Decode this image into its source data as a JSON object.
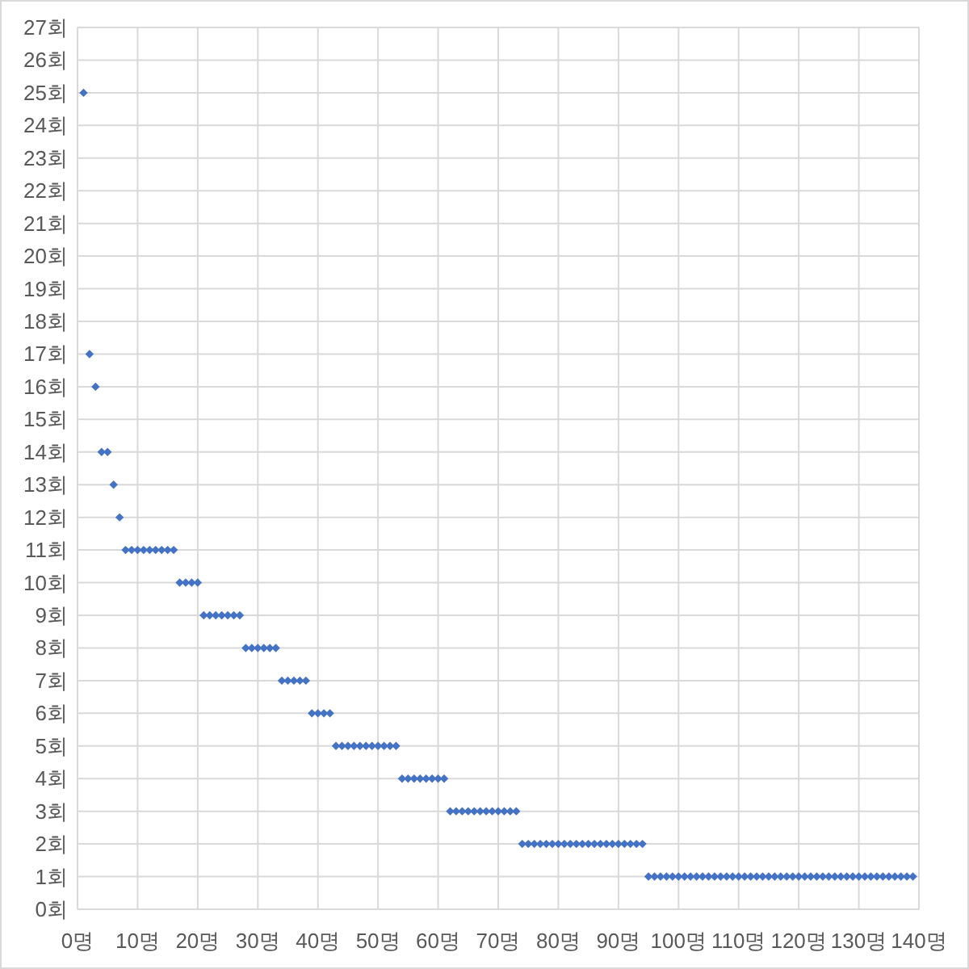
{
  "chart_data": {
    "type": "scatter",
    "x": [
      1,
      2,
      3,
      4,
      5,
      6,
      7,
      8,
      9,
      10,
      11,
      12,
      13,
      14,
      15,
      16,
      17,
      18,
      19,
      20,
      21,
      22,
      23,
      24,
      25,
      26,
      27,
      28,
      29,
      30,
      31,
      32,
      33,
      34,
      35,
      36,
      37,
      38,
      39,
      40,
      41,
      42,
      43,
      44,
      45,
      46,
      47,
      48,
      49,
      50,
      51,
      52,
      53,
      54,
      55,
      56,
      57,
      58,
      59,
      60,
      61,
      62,
      63,
      64,
      65,
      66,
      67,
      68,
      69,
      70,
      71,
      72,
      73,
      74,
      75,
      76,
      77,
      78,
      79,
      80,
      81,
      82,
      83,
      84,
      85,
      86,
      87,
      88,
      89,
      90,
      91,
      92,
      93,
      94,
      95,
      96,
      97,
      98,
      99,
      100,
      101,
      102,
      103,
      104,
      105,
      106,
      107,
      108,
      109,
      110,
      111,
      112,
      113,
      114,
      115,
      116,
      117,
      118,
      119,
      120,
      121,
      122,
      123,
      124,
      125,
      126,
      127,
      128,
      129,
      130,
      131,
      132,
      133,
      134,
      135,
      136,
      137,
      138,
      139
    ],
    "series": [
      {
        "color": "#4472c4",
        "values": [
          25,
          17,
          16,
          14,
          14,
          13,
          12,
          11,
          11,
          11,
          11,
          11,
          11,
          11,
          11,
          11,
          10,
          10,
          10,
          10,
          9,
          9,
          9,
          9,
          9,
          9,
          9,
          8,
          8,
          8,
          8,
          8,
          8,
          7,
          7,
          7,
          7,
          7,
          6,
          6,
          6,
          6,
          5,
          5,
          5,
          5,
          5,
          5,
          5,
          5,
          5,
          5,
          5,
          4,
          4,
          4,
          4,
          4,
          4,
          4,
          4,
          3,
          3,
          3,
          3,
          3,
          3,
          3,
          3,
          3,
          3,
          3,
          3,
          2,
          2,
          2,
          2,
          2,
          2,
          2,
          2,
          2,
          2,
          2,
          2,
          2,
          2,
          2,
          2,
          2,
          2,
          2,
          2,
          2,
          1,
          1,
          1,
          1,
          1,
          1,
          1,
          1,
          1,
          1,
          1,
          1,
          1,
          1,
          1,
          1,
          1,
          1,
          1,
          1,
          1,
          1,
          1,
          1,
          1,
          1,
          1,
          1,
          1,
          1,
          1,
          1,
          1,
          1,
          1,
          1,
          1,
          1,
          1,
          1,
          1,
          1,
          1,
          1,
          1
        ]
      }
    ],
    "xlim": [
      0,
      140
    ],
    "xticks": [
      {
        "value": 0,
        "label": "0명"
      },
      {
        "value": 10,
        "label": "10명"
      },
      {
        "value": 20,
        "label": "20명"
      },
      {
        "value": 30,
        "label": "30명"
      },
      {
        "value": 40,
        "label": "40명"
      },
      {
        "value": 50,
        "label": "50명"
      },
      {
        "value": 60,
        "label": "60명"
      },
      {
        "value": 70,
        "label": "70명"
      },
      {
        "value": 80,
        "label": "80명"
      },
      {
        "value": 90,
        "label": "90명"
      },
      {
        "value": 100,
        "label": "100명"
      },
      {
        "value": 110,
        "label": "110명"
      },
      {
        "value": 120,
        "label": "120명"
      },
      {
        "value": 130,
        "label": "130명"
      },
      {
        "value": 140,
        "label": "140명"
      }
    ],
    "ylim": [
      0,
      27
    ],
    "yticks": [
      {
        "value": 0,
        "label": "0회"
      },
      {
        "value": 1,
        "label": "1회"
      },
      {
        "value": 2,
        "label": "2회"
      },
      {
        "value": 3,
        "label": "3회"
      },
      {
        "value": 4,
        "label": "4회"
      },
      {
        "value": 5,
        "label": "5회"
      },
      {
        "value": 6,
        "label": "6회"
      },
      {
        "value": 7,
        "label": "7회"
      },
      {
        "value": 8,
        "label": "8회"
      },
      {
        "value": 9,
        "label": "9회"
      },
      {
        "value": 10,
        "label": "10회"
      },
      {
        "value": 11,
        "label": "11회"
      },
      {
        "value": 12,
        "label": "12회"
      },
      {
        "value": 13,
        "label": "13회"
      },
      {
        "value": 14,
        "label": "14회"
      },
      {
        "value": 15,
        "label": "15회"
      },
      {
        "value": 16,
        "label": "16회"
      },
      {
        "value": 17,
        "label": "17회"
      },
      {
        "value": 18,
        "label": "18회"
      },
      {
        "value": 19,
        "label": "19회"
      },
      {
        "value": 20,
        "label": "20회"
      },
      {
        "value": 21,
        "label": "21회"
      },
      {
        "value": 22,
        "label": "22회"
      },
      {
        "value": 23,
        "label": "23회"
      },
      {
        "value": 24,
        "label": "24회"
      },
      {
        "value": 25,
        "label": "25회"
      },
      {
        "value": 26,
        "label": "26회"
      },
      {
        "value": 27,
        "label": "27회"
      }
    ],
    "grid": true,
    "marker": "diamond"
  }
}
